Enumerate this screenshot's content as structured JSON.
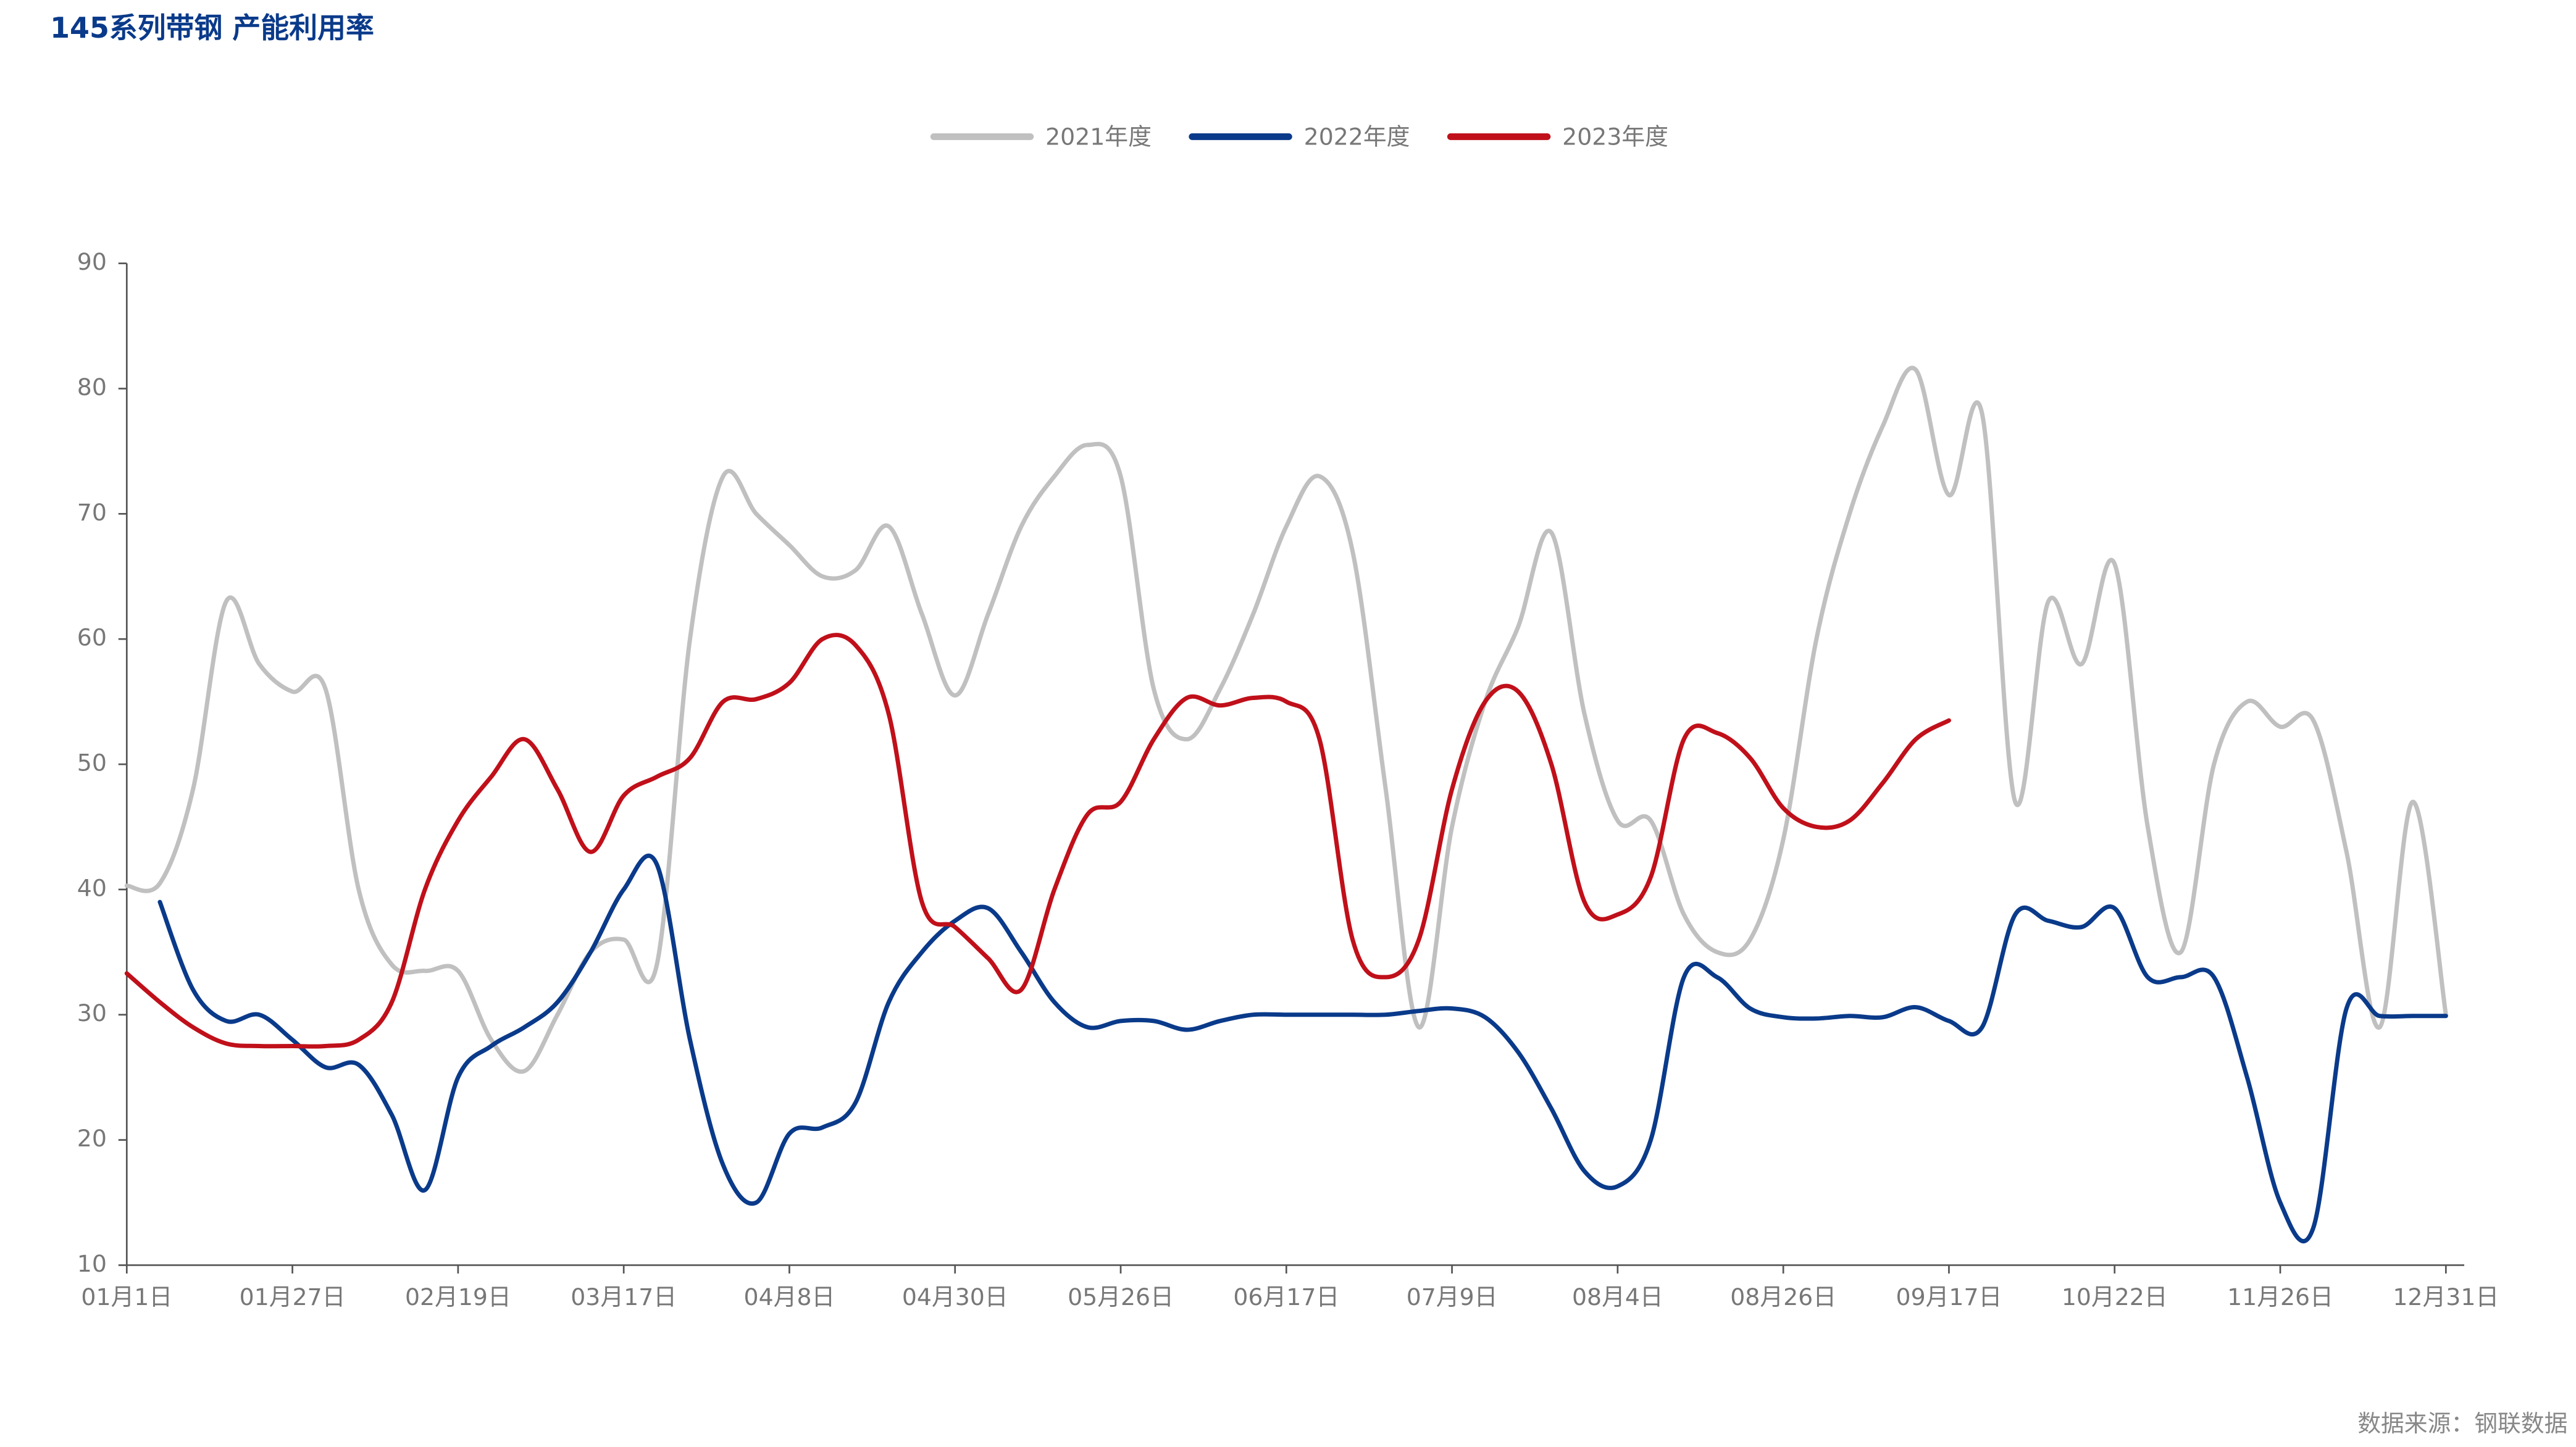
{
  "chart_data": {
    "type": "line",
    "title": "145系列带钢 产能利用率",
    "source": "数据来源：钢联数据",
    "categories": [
      "01月1日",
      null,
      null,
      null,
      null,
      "01月27日",
      null,
      null,
      null,
      null,
      "02月19日",
      null,
      null,
      null,
      null,
      "03月17日",
      null,
      null,
      null,
      null,
      "04月8日",
      null,
      null,
      null,
      null,
      "04月30日",
      null,
      null,
      null,
      null,
      "05月26日",
      null,
      null,
      null,
      null,
      "06月17日",
      null,
      null,
      null,
      null,
      "07月9日",
      null,
      null,
      null,
      null,
      "08月4日",
      null,
      null,
      null,
      null,
      "08月26日",
      null,
      null,
      null,
      null,
      "09月17日",
      null,
      null,
      null,
      null,
      "10月22日",
      null,
      null,
      null,
      null,
      "11月26日",
      null,
      null,
      null,
      null,
      "12月31日"
    ],
    "series": [
      {
        "name": "2021年度",
        "color": "#c0c0c0",
        "values": [
          40.3,
          40.5,
          48,
          63,
          58,
          55.8,
          56,
          40,
          34,
          33.5,
          33.5,
          28,
          25.5,
          30,
          35,
          36,
          34,
          60,
          73,
          70,
          67.5,
          65,
          65.5,
          69,
          62,
          55.5,
          62,
          69,
          73,
          75.5,
          73,
          56,
          52,
          56,
          62,
          69,
          73,
          67,
          48,
          29,
          45,
          55,
          61,
          68.5,
          54,
          45.5,
          45.5,
          38,
          35,
          36,
          44,
          60,
          70,
          77,
          81.5,
          71.5,
          78,
          47,
          63,
          58,
          66,
          45,
          35,
          50,
          55,
          53,
          53.5,
          43,
          29,
          47,
          30
        ]
      },
      {
        "name": "2022年度",
        "color": "#0a3a8a",
        "values": [
          null,
          39,
          32,
          29.5,
          30,
          28,
          25.8,
          26,
          22,
          16,
          25,
          27.5,
          29,
          31,
          35,
          40,
          42,
          28,
          18,
          15,
          20.5,
          21,
          23,
          31,
          35,
          37.5,
          38.5,
          35,
          31,
          29,
          29.5,
          29.5,
          28.8,
          29.5,
          30,
          30,
          30,
          30,
          30,
          30.3,
          30.5,
          29.8,
          27,
          22.5,
          17.5,
          16.3,
          20,
          33,
          33,
          30.5,
          29.8,
          29.7,
          29.9,
          29.8,
          30.6,
          29.5,
          29,
          38,
          37.5,
          37,
          38.5,
          33,
          33,
          33,
          25,
          15,
          13,
          30.5,
          29.9,
          29.9,
          29.9
        ]
      },
      {
        "name": "2023年度",
        "color": "#c0101a",
        "values": [
          33.3,
          31,
          29,
          27.7,
          27.5,
          27.5,
          27.5,
          28,
          31,
          40,
          45.5,
          49,
          52,
          48,
          43,
          47.5,
          49,
          50.5,
          55,
          55.2,
          56.5,
          60,
          59.5,
          54,
          39,
          37,
          34.5,
          32,
          40,
          46,
          47,
          52,
          55.3,
          54.7,
          55.3,
          55,
          52,
          36,
          33,
          36,
          48,
          55,
          55.8,
          50,
          39,
          38,
          41,
          52,
          52.5,
          50.5,
          46.5,
          45,
          45.5,
          48.5,
          52,
          53.5,
          null,
          null,
          null,
          null,
          null,
          null,
          null,
          null,
          null,
          null,
          null,
          null,
          null,
          null,
          null
        ]
      }
    ],
    "ylim": [
      10,
      90
    ],
    "yticks": [
      10,
      20,
      30,
      40,
      50,
      60,
      70,
      80,
      90
    ]
  }
}
